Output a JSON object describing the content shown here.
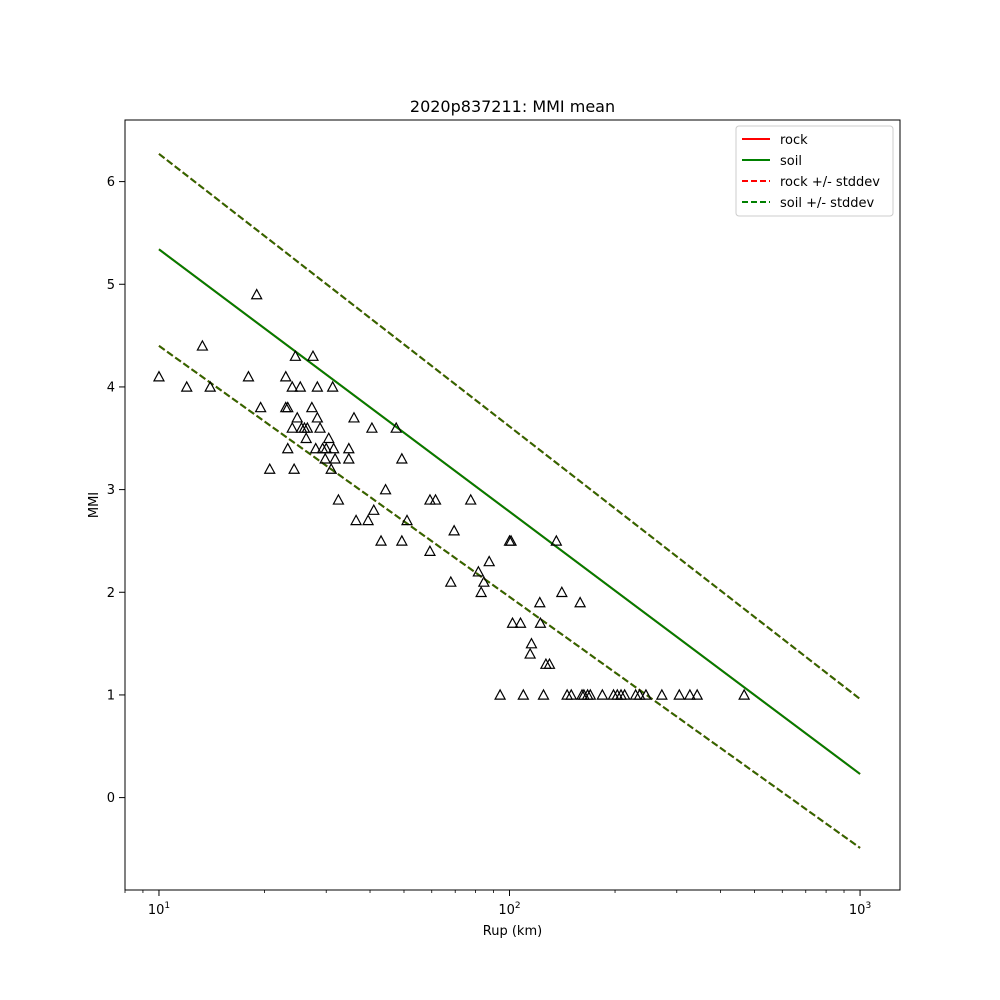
{
  "chart_data": {
    "type": "scatter",
    "title": "2020p837211: MMI mean",
    "xlabel": "Rup (km)",
    "ylabel": "MMI",
    "xscale": "log",
    "xlim": [
      8,
      1300
    ],
    "ylim": [
      -0.9,
      6.6
    ],
    "x_ticks": [
      {
        "value": 10,
        "base": "10",
        "exp": "1"
      },
      {
        "value": 100,
        "base": "10",
        "exp": "2"
      },
      {
        "value": 1000,
        "base": "10",
        "exp": "3"
      }
    ],
    "y_ticks": [
      0,
      1,
      2,
      3,
      4,
      5,
      6
    ],
    "grid": false,
    "legend_position": "top-right",
    "legend": [
      {
        "label": "rock",
        "color": "#ff0000",
        "style": "solid"
      },
      {
        "label": "soil",
        "color": "#008000",
        "style": "solid"
      },
      {
        "label": "rock +/- stddev",
        "color": "#ff0000",
        "style": "dashed"
      },
      {
        "label": "soil +/- stddev",
        "color": "#008000",
        "style": "dashed"
      }
    ],
    "lines": [
      {
        "name": "rock",
        "color": "#ff0000",
        "style": "solid",
        "x": [
          10,
          1000
        ],
        "y": [
          5.34,
          0.23
        ]
      },
      {
        "name": "rock +/- stddev",
        "color": "#ff0000",
        "style": "dashed",
        "x": [
          10,
          1000
        ],
        "y": [
          6.27,
          0.96
        ]
      },
      {
        "name": "rock +/- stddev",
        "color": "#ff0000",
        "style": "dashed",
        "x": [
          10,
          1000
        ],
        "y": [
          4.4,
          -0.49
        ]
      },
      {
        "name": "soil",
        "color": "#008000",
        "style": "solid",
        "x": [
          10,
          1000
        ],
        "y": [
          5.34,
          0.23
        ]
      },
      {
        "name": "soil +/- stddev",
        "color": "#2d6a00",
        "style": "dashed",
        "x": [
          10,
          1000
        ],
        "y": [
          6.27,
          0.96
        ]
      },
      {
        "name": "soil +/- stddev",
        "color": "#2d6a00",
        "style": "dashed",
        "x": [
          10,
          1000
        ],
        "y": [
          4.4,
          -0.49
        ]
      }
    ],
    "points": [
      {
        "x": 10.0,
        "y": 4.1
      },
      {
        "x": 12.0,
        "y": 4.0
      },
      {
        "x": 13.3,
        "y": 4.4
      },
      {
        "x": 14.0,
        "y": 4.0
      },
      {
        "x": 18.0,
        "y": 4.1
      },
      {
        "x": 19.0,
        "y": 4.9
      },
      {
        "x": 19.5,
        "y": 3.8
      },
      {
        "x": 20.7,
        "y": 3.2
      },
      {
        "x": 23.0,
        "y": 4.1
      },
      {
        "x": 23.0,
        "y": 3.8
      },
      {
        "x": 23.3,
        "y": 3.8
      },
      {
        "x": 23.3,
        "y": 3.4
      },
      {
        "x": 24.0,
        "y": 3.6
      },
      {
        "x": 24.0,
        "y": 4.0
      },
      {
        "x": 24.3,
        "y": 3.2
      },
      {
        "x": 24.5,
        "y": 4.3
      },
      {
        "x": 24.8,
        "y": 3.7
      },
      {
        "x": 25.3,
        "y": 4.0
      },
      {
        "x": 25.5,
        "y": 3.6
      },
      {
        "x": 26.0,
        "y": 3.6
      },
      {
        "x": 26.3,
        "y": 3.5
      },
      {
        "x": 26.5,
        "y": 3.6
      },
      {
        "x": 27.3,
        "y": 3.8
      },
      {
        "x": 27.5,
        "y": 4.3
      },
      {
        "x": 28.0,
        "y": 3.4
      },
      {
        "x": 28.3,
        "y": 3.7
      },
      {
        "x": 28.3,
        "y": 4.0
      },
      {
        "x": 28.8,
        "y": 3.6
      },
      {
        "x": 29.3,
        "y": 3.4
      },
      {
        "x": 29.8,
        "y": 3.3
      },
      {
        "x": 30.0,
        "y": 3.4
      },
      {
        "x": 30.5,
        "y": 3.5
      },
      {
        "x": 31.0,
        "y": 3.2
      },
      {
        "x": 31.3,
        "y": 4.0
      },
      {
        "x": 31.5,
        "y": 3.4
      },
      {
        "x": 31.8,
        "y": 3.3
      },
      {
        "x": 32.5,
        "y": 2.9
      },
      {
        "x": 34.8,
        "y": 3.4
      },
      {
        "x": 34.8,
        "y": 3.3
      },
      {
        "x": 36.0,
        "y": 3.7
      },
      {
        "x": 36.5,
        "y": 2.7
      },
      {
        "x": 39.5,
        "y": 2.7
      },
      {
        "x": 40.5,
        "y": 3.6
      },
      {
        "x": 41.0,
        "y": 2.8
      },
      {
        "x": 43.0,
        "y": 2.5
      },
      {
        "x": 44.3,
        "y": 3.0
      },
      {
        "x": 47.5,
        "y": 3.6
      },
      {
        "x": 49.3,
        "y": 3.3
      },
      {
        "x": 49.3,
        "y": 2.5
      },
      {
        "x": 51.0,
        "y": 2.7
      },
      {
        "x": 59.3,
        "y": 2.9
      },
      {
        "x": 59.3,
        "y": 2.4
      },
      {
        "x": 61.5,
        "y": 2.9
      },
      {
        "x": 68.0,
        "y": 2.1
      },
      {
        "x": 69.5,
        "y": 2.6
      },
      {
        "x": 77.5,
        "y": 2.9
      },
      {
        "x": 81.5,
        "y": 2.2
      },
      {
        "x": 83.0,
        "y": 2.0
      },
      {
        "x": 84.5,
        "y": 2.1
      },
      {
        "x": 87.5,
        "y": 2.3
      },
      {
        "x": 94.0,
        "y": 1.0
      },
      {
        "x": 100.0,
        "y": 2.5
      },
      {
        "x": 101.0,
        "y": 2.5
      },
      {
        "x": 102.0,
        "y": 1.7
      },
      {
        "x": 107.5,
        "y": 1.7
      },
      {
        "x": 109.5,
        "y": 1.0
      },
      {
        "x": 114.5,
        "y": 1.4
      },
      {
        "x": 115.5,
        "y": 1.5
      },
      {
        "x": 122.0,
        "y": 1.9
      },
      {
        "x": 122.5,
        "y": 1.7
      },
      {
        "x": 125.0,
        "y": 1.0
      },
      {
        "x": 127.0,
        "y": 1.3
      },
      {
        "x": 130.0,
        "y": 1.3
      },
      {
        "x": 136.0,
        "y": 2.5
      },
      {
        "x": 141.0,
        "y": 2.0
      },
      {
        "x": 146.0,
        "y": 1.0
      },
      {
        "x": 150.0,
        "y": 1.0
      },
      {
        "x": 159.0,
        "y": 1.9
      },
      {
        "x": 161.0,
        "y": 1.0
      },
      {
        "x": 163.0,
        "y": 1.0
      },
      {
        "x": 167.0,
        "y": 1.0
      },
      {
        "x": 170.0,
        "y": 1.0
      },
      {
        "x": 184.0,
        "y": 1.0
      },
      {
        "x": 198.0,
        "y": 1.0
      },
      {
        "x": 203.0,
        "y": 1.0
      },
      {
        "x": 208.0,
        "y": 1.0
      },
      {
        "x": 213.0,
        "y": 1.0
      },
      {
        "x": 229.0,
        "y": 1.0
      },
      {
        "x": 235.0,
        "y": 1.0
      },
      {
        "x": 245.0,
        "y": 1.0
      },
      {
        "x": 272.0,
        "y": 1.0
      },
      {
        "x": 305.0,
        "y": 1.0
      },
      {
        "x": 327.0,
        "y": 1.0
      },
      {
        "x": 343.0,
        "y": 1.0
      },
      {
        "x": 467.0,
        "y": 1.0
      }
    ]
  }
}
